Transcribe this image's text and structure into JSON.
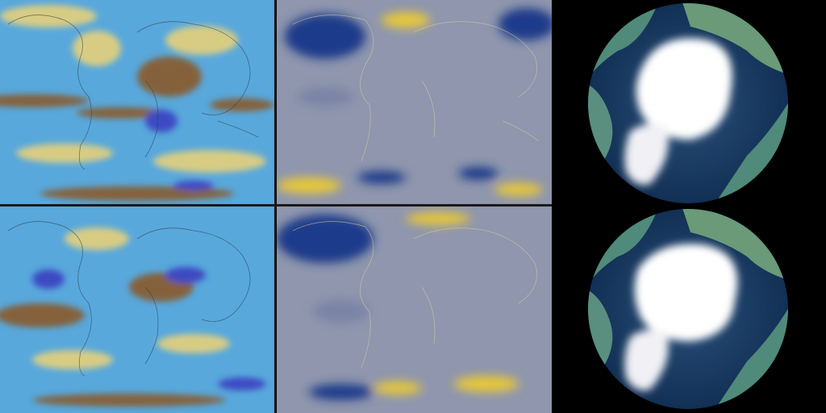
{
  "figure": {
    "columns": [
      {
        "name": "precipitation-anomaly-maps",
        "colors": {
          "wet": "#4a90d0",
          "dry": "#8a5a2a",
          "neutral": "#e6d07a",
          "extreme_wet": "#3a40c0"
        }
      },
      {
        "name": "temperature-anomaly-maps",
        "colors": {
          "cold": "#1e3a8a",
          "neutral": "#8f96ad",
          "warm": "#e8c838"
        }
      },
      {
        "name": "arctic-sea-ice-globes",
        "colors": {
          "ocean": "#1f3f6a",
          "ice": "#ffffff",
          "land": "#4f8a7a",
          "space": "#000000"
        }
      }
    ],
    "rows": 2
  }
}
